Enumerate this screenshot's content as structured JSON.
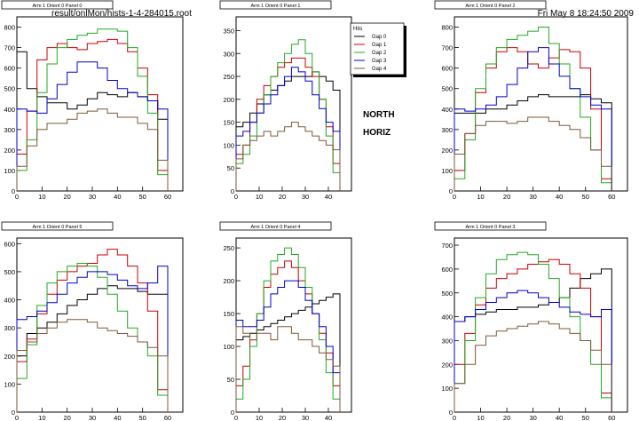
{
  "header": {
    "file": "result/onlMon/hists-1-4-284015.root",
    "datetime": "Fri May  8 18:24:50 2009"
  },
  "annotations": [
    "NORTH",
    "HORIZ"
  ],
  "legend_title": "Hits",
  "series_names": [
    "Gap 0",
    "Gap 1",
    "Gap 2",
    "Gap 3",
    "Gap 4"
  ],
  "colors": {
    "Gap 0": "#000000",
    "Gap 1": "#cc0000",
    "Gap 2": "#22aa22",
    "Gap 3": "#0000cc",
    "Gap 4": "#7b5a3a"
  },
  "chart_data": [
    {
      "type": "line",
      "title": "Arm 1 Orient 0 Panel 0",
      "xlim": [
        0,
        66
      ],
      "ylim": [
        0,
        850
      ],
      "xticks": [
        0,
        10,
        20,
        30,
        40,
        50,
        60
      ],
      "yticks": [
        0,
        100,
        200,
        300,
        400,
        500,
        600,
        700,
        800
      ],
      "x_bin_edges": [
        0,
        4,
        8,
        12,
        16,
        20,
        24,
        28,
        32,
        36,
        40,
        44,
        48,
        52,
        56,
        60
      ],
      "series": [
        {
          "name": "Gap 0",
          "values": [
            680,
            500,
            460,
            430,
            430,
            400,
            420,
            450,
            480,
            470,
            460,
            480,
            460,
            440,
            350
          ]
        },
        {
          "name": "Gap 1",
          "values": [
            180,
            390,
            640,
            700,
            720,
            700,
            690,
            720,
            730,
            740,
            720,
            680,
            600,
            470,
            100
          ]
        },
        {
          "name": "Gap 2",
          "values": [
            100,
            250,
            480,
            620,
            700,
            740,
            760,
            770,
            790,
            790,
            780,
            700,
            560,
            380,
            80
          ]
        },
        {
          "name": "Gap 3",
          "values": [
            400,
            390,
            380,
            450,
            520,
            580,
            630,
            630,
            600,
            540,
            500,
            480,
            460,
            440,
            400
          ]
        },
        {
          "name": "Gap 4",
          "values": [
            120,
            220,
            300,
            330,
            330,
            350,
            380,
            390,
            400,
            380,
            360,
            360,
            330,
            300,
            150
          ]
        }
      ]
    },
    {
      "type": "line",
      "title": "Arm 1 Orient 0 Panel 1",
      "xlim": [
        0,
        50
      ],
      "ylim": [
        0,
        380
      ],
      "xticks": [
        0,
        10,
        20,
        30,
        40
      ],
      "yticks": [
        0,
        50,
        100,
        150,
        200,
        250,
        300,
        350
      ],
      "x_bin_edges": [
        0,
        3,
        6,
        9,
        12,
        15,
        18,
        21,
        24,
        27,
        30,
        33,
        36,
        39,
        42,
        45
      ],
      "series": [
        {
          "name": "Gap 0",
          "values": [
            140,
            150,
            170,
            190,
            210,
            220,
            230,
            240,
            250,
            250,
            250,
            260,
            250,
            240,
            220
          ]
        },
        {
          "name": "Gap 1",
          "values": [
            80,
            100,
            150,
            200,
            230,
            250,
            270,
            280,
            290,
            290,
            270,
            250,
            200,
            140,
            60
          ]
        },
        {
          "name": "Gap 2",
          "values": [
            60,
            80,
            120,
            170,
            210,
            250,
            280,
            300,
            320,
            330,
            300,
            260,
            200,
            120,
            40
          ]
        },
        {
          "name": "Gap 3",
          "values": [
            120,
            130,
            150,
            170,
            190,
            210,
            230,
            250,
            270,
            260,
            240,
            210,
            180,
            150,
            130
          ]
        },
        {
          "name": "Gap 4",
          "values": [
            70,
            100,
            110,
            120,
            130,
            120,
            130,
            140,
            150,
            140,
            130,
            120,
            110,
            100,
            90
          ]
        }
      ]
    },
    {
      "type": "line",
      "title": "Arm 1 Orient 0 Panel 2",
      "xlim": [
        0,
        66
      ],
      "ylim": [
        0,
        850
      ],
      "xticks": [
        0,
        10,
        20,
        30,
        40,
        50,
        60
      ],
      "yticks": [
        0,
        100,
        200,
        300,
        400,
        500,
        600,
        700,
        800
      ],
      "x_bin_edges": [
        0,
        4,
        8,
        12,
        16,
        20,
        24,
        28,
        32,
        36,
        40,
        44,
        48,
        52,
        56,
        60
      ],
      "series": [
        {
          "name": "Gap 0",
          "values": [
            380,
            380,
            380,
            400,
            400,
            420,
            440,
            460,
            470,
            460,
            460,
            460,
            470,
            450,
            430
          ]
        },
        {
          "name": "Gap 1",
          "values": [
            100,
            280,
            480,
            600,
            680,
            700,
            680,
            620,
            600,
            650,
            690,
            680,
            600,
            400,
            60
          ]
        },
        {
          "name": "Gap 2",
          "values": [
            60,
            250,
            500,
            620,
            700,
            740,
            760,
            780,
            800,
            720,
            620,
            500,
            360,
            200,
            40
          ]
        },
        {
          "name": "Gap 3",
          "values": [
            400,
            390,
            400,
            420,
            460,
            520,
            600,
            680,
            700,
            620,
            560,
            500,
            460,
            420,
            400
          ]
        },
        {
          "name": "Gap 4",
          "values": [
            180,
            280,
            320,
            340,
            340,
            330,
            340,
            360,
            360,
            340,
            320,
            300,
            260,
            200,
            120
          ]
        }
      ]
    },
    {
      "type": "line",
      "title": "Arm 1 Orient 0 Panel 5",
      "xlim": [
        0,
        66
      ],
      "ylim": [
        0,
        620
      ],
      "xticks": [
        0,
        10,
        20,
        30,
        40,
        50,
        60
      ],
      "yticks": [
        0,
        100,
        200,
        300,
        400,
        500,
        600
      ],
      "x_bin_edges": [
        0,
        4,
        8,
        12,
        16,
        20,
        24,
        28,
        32,
        36,
        40,
        44,
        48,
        52,
        56,
        60
      ],
      "series": [
        {
          "name": "Gap 0",
          "values": [
            200,
            280,
            300,
            320,
            350,
            380,
            400,
            420,
            440,
            450,
            440,
            440,
            430,
            420,
            420
          ]
        },
        {
          "name": "Gap 1",
          "values": [
            180,
            260,
            350,
            420,
            470,
            500,
            520,
            530,
            560,
            580,
            560,
            520,
            460,
            360,
            80
          ]
        },
        {
          "name": "Gap 2",
          "values": [
            120,
            240,
            380,
            460,
            500,
            520,
            530,
            520,
            480,
            420,
            360,
            300,
            250,
            200,
            60
          ]
        },
        {
          "name": "Gap 3",
          "values": [
            330,
            340,
            360,
            390,
            420,
            460,
            480,
            500,
            500,
            490,
            470,
            450,
            440,
            460,
            520
          ]
        },
        {
          "name": "Gap 4",
          "values": [
            220,
            250,
            280,
            300,
            320,
            330,
            330,
            320,
            300,
            290,
            280,
            270,
            250,
            230,
            200
          ]
        }
      ]
    },
    {
      "type": "line",
      "title": "Arm 1 Orient 0 Panel 4",
      "xlim": [
        0,
        50
      ],
      "ylim": [
        0,
        265
      ],
      "xticks": [
        0,
        10,
        20,
        30,
        40
      ],
      "yticks": [
        0,
        50,
        100,
        150,
        200,
        250
      ],
      "x_bin_edges": [
        0,
        3,
        6,
        9,
        12,
        15,
        18,
        21,
        24,
        27,
        30,
        33,
        36,
        39,
        42,
        45
      ],
      "series": [
        {
          "name": "Gap 0",
          "values": [
            110,
            115,
            120,
            125,
            130,
            135,
            140,
            145,
            150,
            155,
            160,
            165,
            170,
            175,
            180
          ]
        },
        {
          "name": "Gap 1",
          "values": [
            40,
            70,
            110,
            150,
            190,
            210,
            220,
            230,
            220,
            200,
            180,
            150,
            120,
            90,
            40
          ]
        },
        {
          "name": "Gap 2",
          "values": [
            20,
            50,
            100,
            150,
            200,
            230,
            240,
            250,
            240,
            220,
            190,
            150,
            110,
            60,
            20
          ]
        },
        {
          "name": "Gap 3",
          "values": [
            140,
            130,
            130,
            140,
            160,
            180,
            190,
            200,
            200,
            190,
            170,
            150,
            130,
            100,
            60
          ]
        },
        {
          "name": "Gap 4",
          "values": [
            130,
            120,
            110,
            120,
            120,
            110,
            130,
            130,
            120,
            110,
            110,
            100,
            90,
            80,
            70
          ]
        }
      ]
    },
    {
      "type": "line",
      "title": "Arm 1 Orient 0 Panel 3",
      "xlim": [
        0,
        66
      ],
      "ylim": [
        0,
        730
      ],
      "xticks": [
        0,
        10,
        20,
        30,
        40,
        50,
        60
      ],
      "yticks": [
        0,
        100,
        200,
        300,
        400,
        500,
        600,
        700
      ],
      "x_bin_edges": [
        0,
        4,
        8,
        12,
        16,
        20,
        24,
        28,
        32,
        36,
        40,
        44,
        48,
        52,
        56,
        60
      ],
      "series": [
        {
          "name": "Gap 0",
          "values": [
            380,
            400,
            410,
            420,
            430,
            430,
            440,
            440,
            450,
            460,
            480,
            520,
            560,
            580,
            600
          ]
        },
        {
          "name": "Gap 1",
          "values": [
            200,
            330,
            450,
            520,
            560,
            580,
            600,
            620,
            630,
            640,
            620,
            580,
            520,
            400,
            80
          ]
        },
        {
          "name": "Gap 2",
          "values": [
            120,
            300,
            480,
            580,
            640,
            660,
            670,
            660,
            620,
            560,
            480,
            400,
            300,
            200,
            60
          ]
        },
        {
          "name": "Gap 3",
          "values": [
            380,
            400,
            430,
            460,
            480,
            500,
            510,
            500,
            480,
            460,
            440,
            420,
            410,
            400,
            430
          ]
        },
        {
          "name": "Gap 4",
          "values": [
            120,
            200,
            280,
            320,
            340,
            350,
            360,
            370,
            380,
            370,
            350,
            330,
            300,
            260,
            200
          ]
        }
      ]
    }
  ]
}
